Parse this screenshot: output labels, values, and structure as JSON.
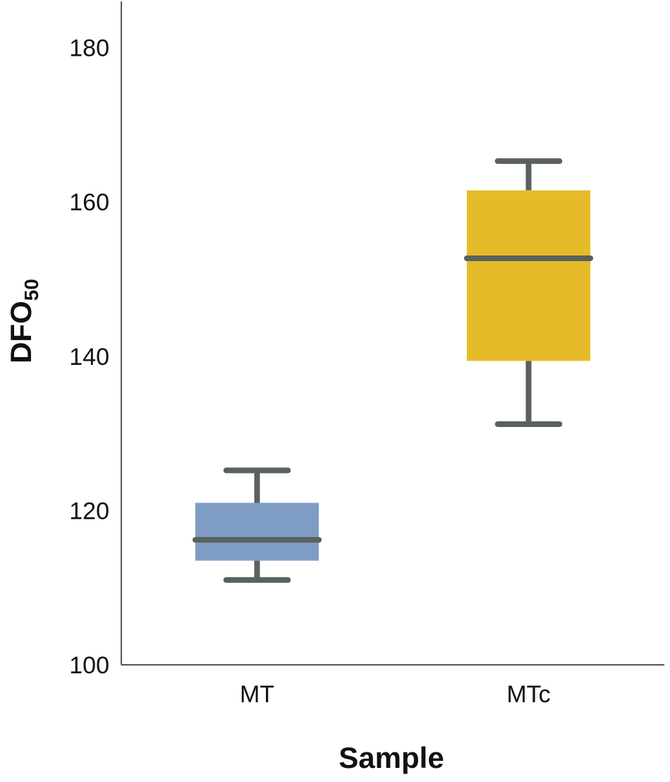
{
  "chart_data": {
    "type": "box",
    "title": "",
    "xlabel": "Sample",
    "ylabel": {
      "main": "DFO",
      "subscript": "50"
    },
    "ylim": [
      100,
      186
    ],
    "yticks": [
      100,
      120,
      140,
      160,
      180
    ],
    "grid": false,
    "legend": "none",
    "categories": [
      "MT",
      "MTc"
    ],
    "boxes": [
      {
        "name": "MT",
        "whisker_low": 111,
        "q1": 113.5,
        "median": 116.2,
        "q3": 121,
        "whisker_high": 125.2,
        "color": "#7F9DC4"
      },
      {
        "name": "MTc",
        "whisker_low": 131.2,
        "q1": 139.4,
        "median": 152.7,
        "q3": 161.5,
        "whisker_high": 165.3,
        "color": "#E6BB2A"
      }
    ],
    "line_color": "#59615C"
  }
}
